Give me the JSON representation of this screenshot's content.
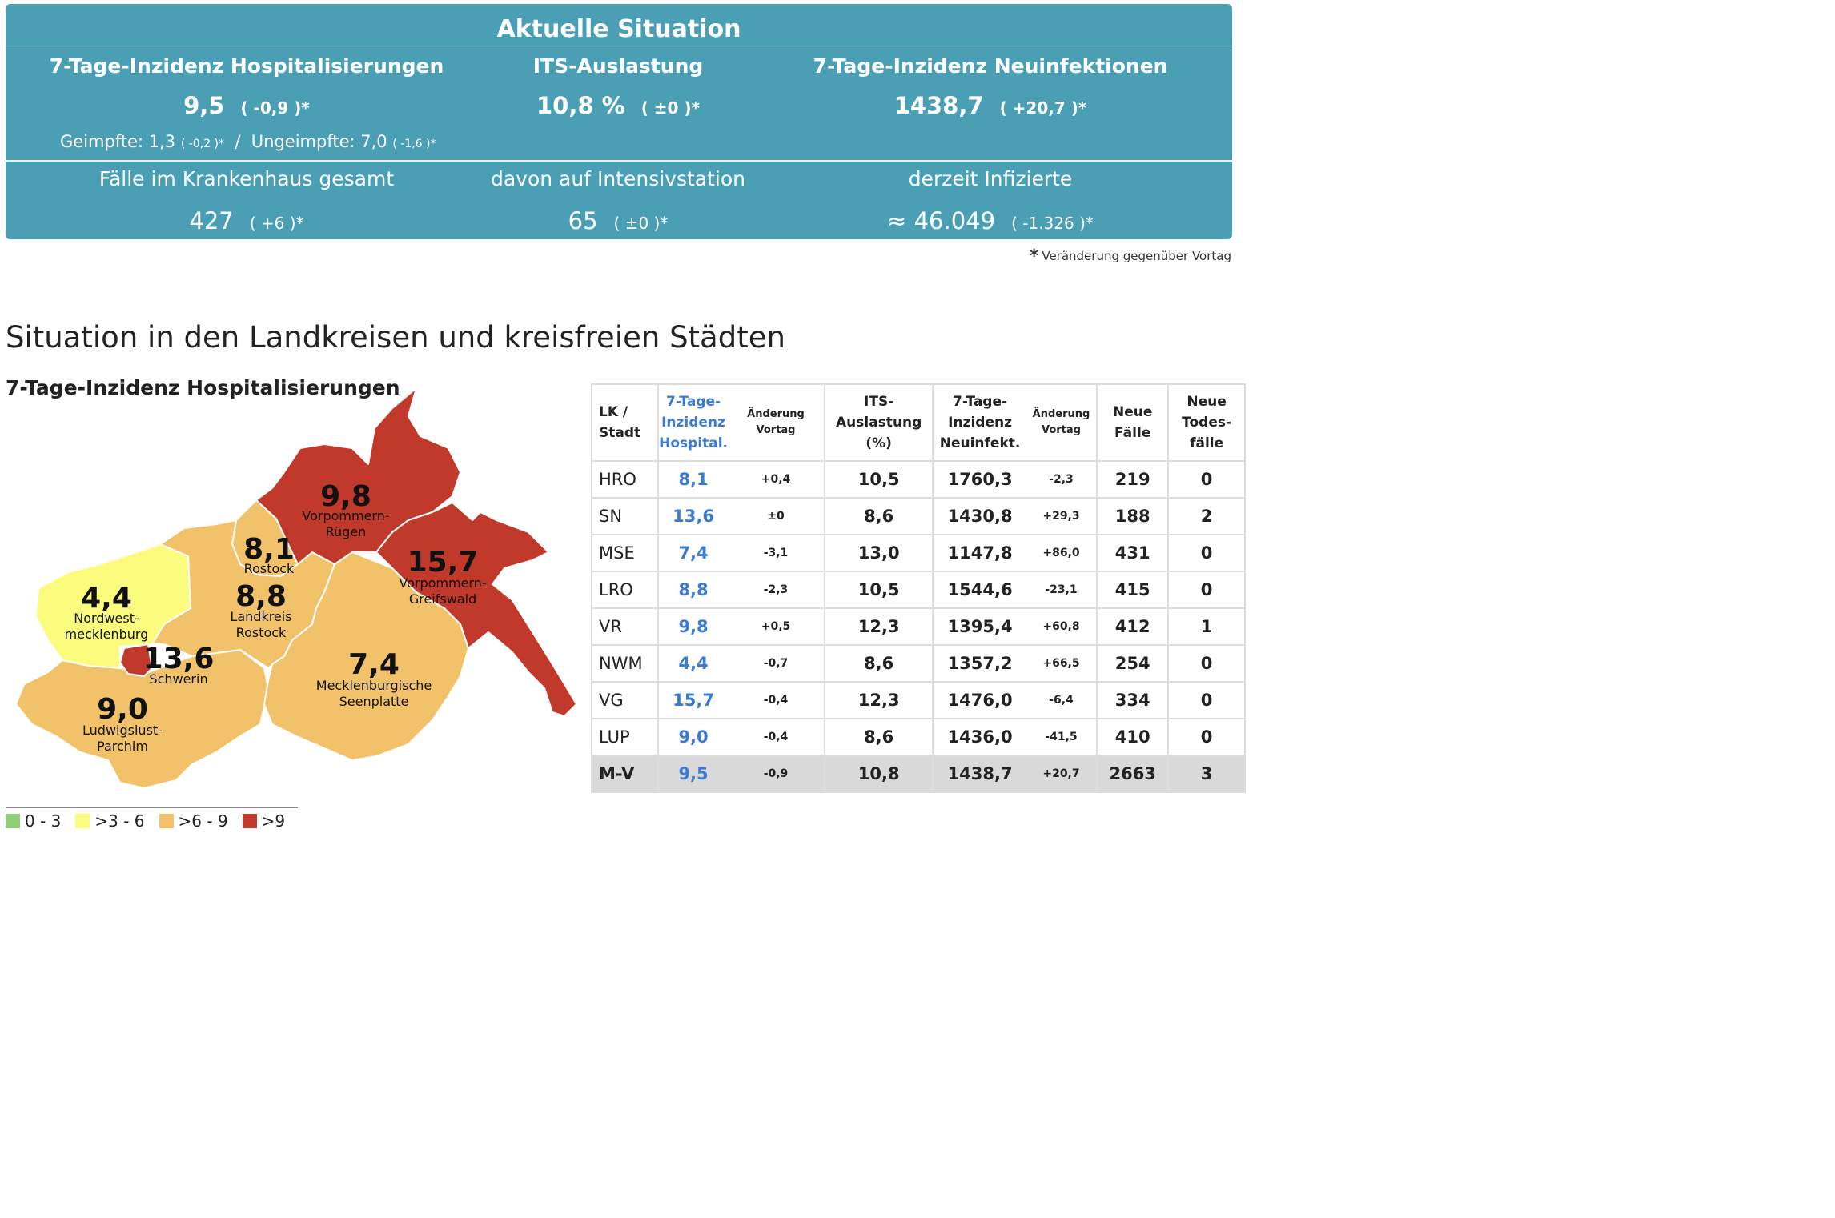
{
  "panel": {
    "title": "Aktuelle Situation",
    "hosp": {
      "label": "7-Tage-Inzidenz Hospitalisierungen",
      "value": "9,5",
      "change": "( -0,9 )*",
      "geimpfte": "Geimpfte: 1,3",
      "geimpfte_change": "( -0,2 )*",
      "sep": "/",
      "ungeimpfte": "Ungeimpfte: 7,0",
      "ungeimpfte_change": "( -1,6 )*"
    },
    "its": {
      "label": "ITS-Auslastung",
      "value": "10,8 %",
      "change": "( ±0 )*"
    },
    "neu": {
      "label": "7-Tage-Inzidenz Neuinfektionen",
      "value": "1438,7",
      "change": "( +20,7 )*"
    },
    "kh": {
      "label": "Fälle im Krankenhaus gesamt",
      "value": "427",
      "change": "( +6 )*"
    },
    "intensiv": {
      "label": "davon auf Intensivstation",
      "value": "65",
      "change": "( ±0 )*"
    },
    "infiziert": {
      "label": "derzeit Infizierte",
      "value": "≈ 46.049",
      "change": "( -1.326 )*"
    }
  },
  "footnote": {
    "star": "*",
    "text": "Veränderung gegenüber Vortag"
  },
  "section_title": "Situation in den Landkreisen und kreisfreien Städten",
  "map": {
    "title": "7-Tage-Inzidenz Hospitalisierungen",
    "colors": {
      "c0_3": "#8fcf7a",
      "c3_6": "#fbfb7e",
      "c6_9": "#f2c26b",
      "c9": "#c1392b"
    },
    "regions": [
      {
        "id": "vr",
        "value": "9,8",
        "name1": "Vorpommern-",
        "name2": "Rügen"
      },
      {
        "id": "hro",
        "value": "8,1",
        "name1": "Rostock",
        "name2": ""
      },
      {
        "id": "vg",
        "value": "15,7",
        "name1": "Vorpommern-",
        "name2": "Greifswald"
      },
      {
        "id": "nwm",
        "value": "4,4",
        "name1": "Nordwest-",
        "name2": "mecklenburg"
      },
      {
        "id": "lro",
        "value": "8,8",
        "name1": "Landkreis",
        "name2": "Rostock"
      },
      {
        "id": "sn",
        "value": "13,6",
        "name1": "Schwerin",
        "name2": ""
      },
      {
        "id": "mse",
        "value": "7,4",
        "name1": "Mecklenburgische",
        "name2": "Seenplatte"
      },
      {
        "id": "lup",
        "value": "9,0",
        "name1": "Ludwigslust-",
        "name2": "Parchim"
      }
    ],
    "legend": [
      "0 - 3",
      ">3 - 6",
      ">6 - 9",
      ">9"
    ]
  },
  "table": {
    "headers": {
      "lk": [
        "LK /",
        "Stadt"
      ],
      "hosp": [
        "7-Tage-",
        "Inzidenz",
        "Hospital."
      ],
      "hosp_chg": [
        "Änderung",
        "Vortag"
      ],
      "its": [
        "ITS-",
        "Auslastung",
        "(%)"
      ],
      "neu": [
        "7-Tage-",
        "Inzidenz",
        "Neuinfekt."
      ],
      "neu_chg": [
        "Änderung",
        "Vortag"
      ],
      "faelle": [
        "Neue",
        "Fälle"
      ],
      "tod": [
        "Neue",
        "Todes-",
        "fälle"
      ]
    },
    "rows": [
      {
        "lk": "HRO",
        "hosp": "8,1",
        "hosp_chg": "+0,4",
        "its": "10,5",
        "neu": "1760,3",
        "neu_chg": "-2,3",
        "faelle": "219",
        "tod": "0"
      },
      {
        "lk": "SN",
        "hosp": "13,6",
        "hosp_chg": "±0",
        "its": "8,6",
        "neu": "1430,8",
        "neu_chg": "+29,3",
        "faelle": "188",
        "tod": "2"
      },
      {
        "lk": "MSE",
        "hosp": "7,4",
        "hosp_chg": "-3,1",
        "its": "13,0",
        "neu": "1147,8",
        "neu_chg": "+86,0",
        "faelle": "431",
        "tod": "0"
      },
      {
        "lk": "LRO",
        "hosp": "8,8",
        "hosp_chg": "-2,3",
        "its": "10,5",
        "neu": "1544,6",
        "neu_chg": "-23,1",
        "faelle": "415",
        "tod": "0"
      },
      {
        "lk": "VR",
        "hosp": "9,8",
        "hosp_chg": "+0,5",
        "its": "12,3",
        "neu": "1395,4",
        "neu_chg": "+60,8",
        "faelle": "412",
        "tod": "1"
      },
      {
        "lk": "NWM",
        "hosp": "4,4",
        "hosp_chg": "-0,7",
        "its": "8,6",
        "neu": "1357,2",
        "neu_chg": "+66,5",
        "faelle": "254",
        "tod": "0"
      },
      {
        "lk": "VG",
        "hosp": "15,7",
        "hosp_chg": "-0,4",
        "its": "12,3",
        "neu": "1476,0",
        "neu_chg": "-6,4",
        "faelle": "334",
        "tod": "0"
      },
      {
        "lk": "LUP",
        "hosp": "9,0",
        "hosp_chg": "-0,4",
        "its": "8,6",
        "neu": "1436,0",
        "neu_chg": "-41,5",
        "faelle": "410",
        "tod": "0"
      }
    ],
    "total": {
      "lk": "M-V",
      "hosp": "9,5",
      "hosp_chg": "-0,9",
      "its": "10,8",
      "neu": "1438,7",
      "neu_chg": "+20,7",
      "faelle": "2663",
      "tod": "3"
    }
  }
}
